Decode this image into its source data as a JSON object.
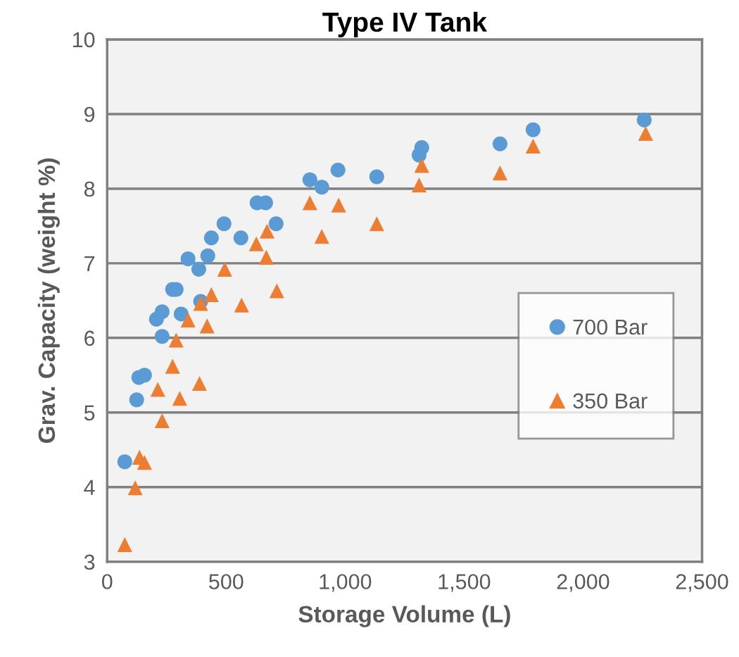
{
  "chart_data": {
    "type": "scatter",
    "title": "Type IV Tank",
    "xlabel": "Storage Volume (L)",
    "ylabel": "Grav. Capacity (weight %)",
    "xlim": [
      0,
      2500
    ],
    "xticks": [
      0,
      {
        "value": 500,
        "label": "500"
      },
      {
        "value": 1000,
        "label": "1,000"
      },
      {
        "value": 1500,
        "label": "1,500"
      },
      {
        "value": 2000,
        "label": "2,000"
      },
      {
        "value": 2500,
        "label": "2,500"
      }
    ],
    "ylim": [
      3,
      10
    ],
    "yticks": [
      3,
      4,
      5,
      6,
      7,
      8,
      9,
      10
    ],
    "grid": "y",
    "legend": "right",
    "series": [
      {
        "name": "700 Bar",
        "color": "#5b9bd5",
        "marker": "circle",
        "x": [
          74,
          124,
          133,
          157,
          207,
          231,
          231,
          311,
          275,
          290,
          340,
          385,
          393,
          423,
          438,
          491,
          562,
          630,
          666,
          710,
          852,
          902,
          970,
          1133,
          1311,
          1322,
          1651,
          1790,
          2257
        ],
        "values": [
          4.34,
          5.17,
          5.47,
          5.5,
          6.25,
          6.35,
          6.02,
          6.32,
          6.65,
          6.65,
          7.06,
          6.92,
          6.49,
          7.1,
          7.34,
          7.53,
          7.34,
          7.81,
          7.81,
          7.53,
          8.12,
          8.02,
          8.25,
          8.16,
          8.45,
          8.55,
          8.6,
          8.79,
          8.92
        ]
      },
      {
        "name": "350 Bar",
        "color": "#ed7d31",
        "marker": "triangle",
        "x": [
          74,
          118,
          136,
          157,
          231,
          213,
          305,
          275,
          388,
          290,
          340,
          420,
          393,
          438,
          565,
          494,
          713,
          669,
          627,
          672,
          902,
          852,
          973,
          1133,
          1311,
          1322,
          1651,
          1790,
          2263
        ],
        "values": [
          3.23,
          3.99,
          4.4,
          4.33,
          4.89,
          5.31,
          5.19,
          5.62,
          5.39,
          5.97,
          6.24,
          6.16,
          6.46,
          6.58,
          6.44,
          6.92,
          6.63,
          7.08,
          7.26,
          7.43,
          7.36,
          7.81,
          7.78,
          7.53,
          8.05,
          8.31,
          8.21,
          8.57,
          8.74
        ]
      }
    ]
  }
}
